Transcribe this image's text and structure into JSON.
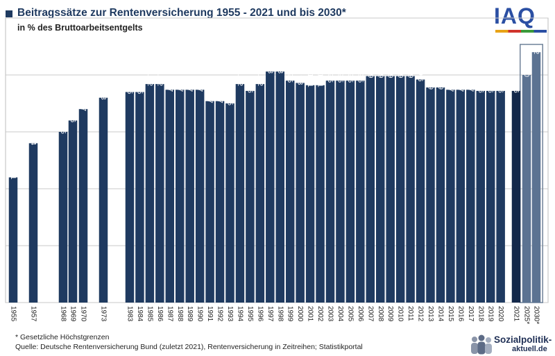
{
  "header": {
    "title": "Beitragssätze zur Rentenversicherung 1955 - 2021 und bis 2030*",
    "subtitle": "in % des Bruttoarbeitsentgelts"
  },
  "logo": {
    "text": "IAQ"
  },
  "footer": {
    "footnote": "* Gesetzliche Höchstgrenzen",
    "source": "Quelle: Deutsche Rentenversicherung Bund (zuletzt 2021), Rentenversicherung in Zeitreihen; Statistikportal",
    "brand_line1": "Sozialpolitik-",
    "brand_line2": "aktuell.de"
  },
  "colors": {
    "bar": "#1f3a60",
    "bar_latest": "#13284a",
    "bar_projection": "#5c7392",
    "projection_box": "#6f8298",
    "grid": "#c8c8c8",
    "value_label": "#ffffff"
  },
  "chart_data": {
    "type": "bar",
    "title": "Beitragssätze zur Rentenversicherung 1955 - 2021 und bis 2030*",
    "subtitle": "in % des Bruttoarbeitsentgelts",
    "xlabel": "",
    "ylabel": "",
    "ylim": [
      0,
      25
    ],
    "gridlines": [
      0,
      5,
      10,
      15,
      20,
      25
    ],
    "categories": [
      "1955",
      "1957",
      "1968",
      "1969",
      "1970",
      "1973",
      "1983",
      "1984",
      "1985",
      "1986",
      "1987",
      "1988",
      "1989",
      "1990",
      "1991",
      "1992",
      "1993",
      "1994",
      "1995",
      "1996",
      "1997",
      "1998",
      "1999",
      "2000",
      "2001",
      "2002",
      "2003",
      "2004",
      "2005",
      "2006",
      "2007",
      "2008",
      "2009",
      "2010",
      "2011",
      "2012",
      "2013",
      "2014",
      "2015",
      "2016",
      "2017",
      "2018",
      "2019",
      "2020",
      "2021",
      "2025*",
      "2030*"
    ],
    "values": [
      11,
      14,
      15,
      16,
      17,
      18,
      18.5,
      18.5,
      19.2,
      19.2,
      18.7,
      18.7,
      18.7,
      18.7,
      17.7,
      17.7,
      17.5,
      19.2,
      18.6,
      19.2,
      20.3,
      20.3,
      19.5,
      19.3,
      19.1,
      19.1,
      19.5,
      19.5,
      19.5,
      19.5,
      19.9,
      19.9,
      19.9,
      19.9,
      19.9,
      19.6,
      18.9,
      18.9,
      18.7,
      18.7,
      18.7,
      18.6,
      18.6,
      18.6,
      18.6,
      20,
      22
    ],
    "value_labels": [
      "11",
      "14",
      "15",
      "16",
      "17",
      "18",
      "18.5",
      "18.5",
      "19.2",
      "19.2",
      "18.7",
      "18.7",
      "18.7",
      "18.7",
      "17.7",
      "17.7",
      "17.5",
      "19.2",
      "18.6",
      "19.2",
      "20.3",
      "20.3",
      "19.5",
      "19.3",
      "19.1",
      "19.1",
      "19.5",
      "19.5",
      "19.5",
      "19.5",
      "19.9",
      "19.9",
      "19.9",
      "19.9",
      "19.9",
      "19.6",
      "18.9",
      "18.9",
      "18.7",
      "18.7",
      "18.7",
      "18.6",
      "18.6",
      "18.6",
      "18.6",
      "20",
      "22"
    ],
    "projection_categories": [
      "2025*",
      "2030*"
    ],
    "latest_category": "2021"
  }
}
